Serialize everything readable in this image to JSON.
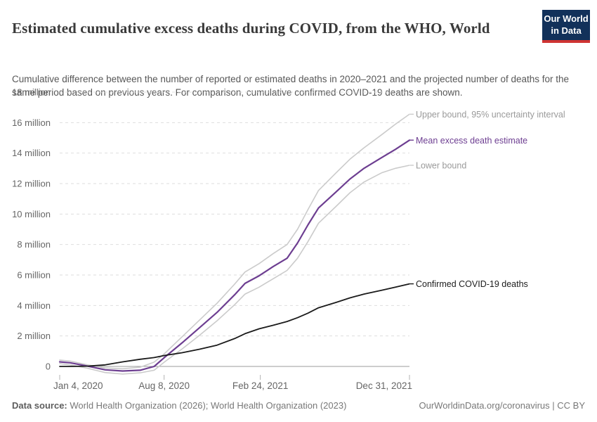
{
  "header": {
    "title": "Estimated cumulative excess deaths during COVID, from the WHO, World",
    "subtitle": "Cumulative difference between the number of reported or estimated deaths in 2020–2021 and the projected number of deaths for the same period based on previous years. For comparison, cumulative confirmed COVID-19 deaths are shown.",
    "logo": {
      "line1": "Our World",
      "line2": "in Data",
      "bg_color": "#12315a",
      "accent_color": "#cf3433"
    }
  },
  "footer": {
    "datasource_label": "Data source:",
    "datasource_text": " World Health Organization (2026); World Health Organization (2023)",
    "credit": "OurWorldinData.org/coronavirus | CC BY"
  },
  "chart_data": {
    "type": "line",
    "title": "Estimated cumulative excess deaths during COVID, from the WHO, World",
    "xlabel": "",
    "ylabel": "",
    "y_ticks": [
      0,
      2,
      4,
      6,
      8,
      10,
      12,
      14,
      16,
      18
    ],
    "y_tick_suffix": " million",
    "ylim": [
      -0.9,
      18
    ],
    "grid": "horizontal-dashed",
    "legend_position": "right-of-line-ends",
    "x_tick_labels": [
      "Jan 4, 2020",
      "Aug 8, 2020",
      "Feb 24, 2021",
      "Dec 31, 2021"
    ],
    "x_tick_positions": [
      0,
      0.2985,
      0.5736,
      1
    ],
    "x_range_dates": [
      "Jan 4, 2020",
      "Dec 31, 2021"
    ],
    "x": [
      0,
      0.03,
      0.08,
      0.13,
      0.18,
      0.23,
      0.27,
      0.3,
      0.35,
      0.4,
      0.45,
      0.5,
      0.53,
      0.57,
      0.61,
      0.65,
      0.68,
      0.71,
      0.74,
      0.79,
      0.83,
      0.87,
      0.92,
      0.96,
      1.0
    ],
    "x_unit": "fraction of Jan 4 2020 – Dec 31 2021",
    "value_unit": "million deaths",
    "series": [
      {
        "name": "Upper bound, 95% uncertainty interval",
        "color": "#cbcbcb",
        "label_color": "#9a9a9a",
        "line_width": 1.6,
        "values": [
          0.42,
          0.35,
          0.1,
          -0.1,
          -0.15,
          -0.05,
          0.28,
          0.85,
          1.95,
          3.05,
          4.15,
          5.4,
          6.2,
          6.75,
          7.4,
          8.0,
          9.0,
          10.3,
          11.55,
          12.7,
          13.6,
          14.35,
          15.2,
          15.9,
          16.55
        ]
      },
      {
        "name": "Mean excess death estimate",
        "color": "#6d3e91",
        "label_color": "#6d3e91",
        "line_width": 2.2,
        "values": [
          0.3,
          0.24,
          0.02,
          -0.22,
          -0.3,
          -0.25,
          0.0,
          0.6,
          1.55,
          2.55,
          3.55,
          4.7,
          5.45,
          5.95,
          6.55,
          7.1,
          8.1,
          9.3,
          10.4,
          11.45,
          12.3,
          13.0,
          13.7,
          14.25,
          14.85
        ]
      },
      {
        "name": "Lower bound",
        "color": "#cbcbcb",
        "label_color": "#9a9a9a",
        "line_width": 1.6,
        "values": [
          0.18,
          0.1,
          -0.12,
          -0.4,
          -0.5,
          -0.42,
          -0.25,
          0.3,
          1.15,
          2.05,
          3.0,
          4.05,
          4.75,
          5.2,
          5.75,
          6.3,
          7.1,
          8.2,
          9.4,
          10.5,
          11.4,
          12.1,
          12.7,
          13.0,
          13.2
        ]
      },
      {
        "name": "Confirmed COVID-19 deaths",
        "color": "#1a1a1a",
        "label_color": "#1d1d1d",
        "line_width": 1.8,
        "values": [
          0.0,
          0.0,
          0.02,
          0.1,
          0.3,
          0.47,
          0.58,
          0.72,
          0.9,
          1.13,
          1.4,
          1.83,
          2.15,
          2.47,
          2.7,
          2.95,
          3.2,
          3.5,
          3.85,
          4.2,
          4.5,
          4.75,
          5.0,
          5.2,
          5.42
        ]
      }
    ]
  }
}
